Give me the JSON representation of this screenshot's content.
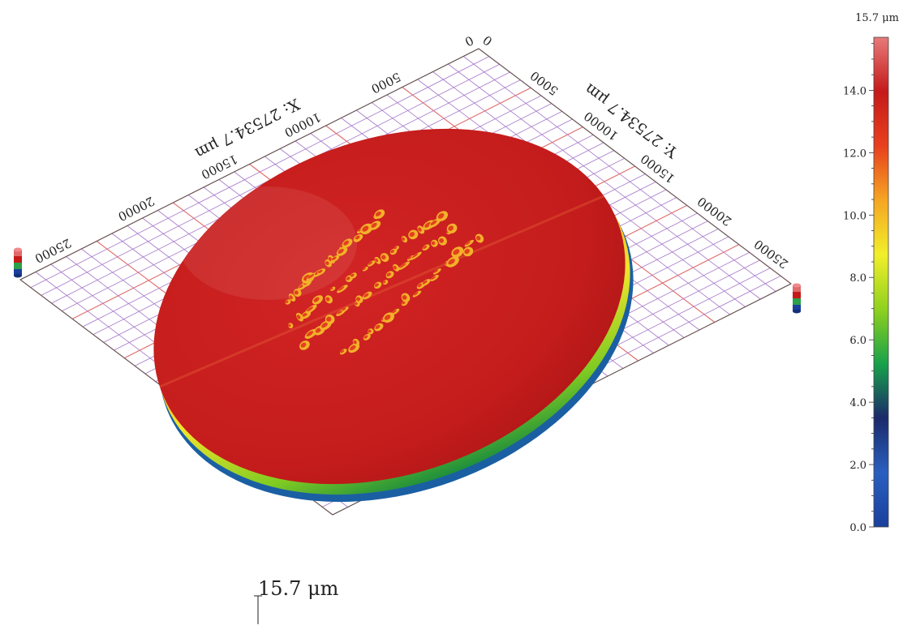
{
  "chart_data": {
    "type": "surface",
    "x_axis": {
      "label": "X: 27534.7 μm",
      "range": [
        0,
        27534.7
      ],
      "ticks": [
        {
          "value": 0,
          "label": "0"
        },
        {
          "value": 5000,
          "label": "5000"
        },
        {
          "value": 10000,
          "label": "10000"
        },
        {
          "value": 15000,
          "label": "15000"
        },
        {
          "value": 20000,
          "label": "20000"
        },
        {
          "value": 25000,
          "label": "25000"
        }
      ]
    },
    "y_axis": {
      "label": "Y: 27534.7 μm",
      "range": [
        0,
        27534.7
      ],
      "ticks": [
        {
          "value": 0,
          "label": "0"
        },
        {
          "value": 5000,
          "label": "5000"
        },
        {
          "value": 10000,
          "label": "10000"
        },
        {
          "value": 15000,
          "label": "15000"
        },
        {
          "value": 20000,
          "label": "20000"
        },
        {
          "value": 25000,
          "label": "25000"
        }
      ]
    },
    "z_axis": {
      "label": "15.7 μm",
      "max": 15.7
    },
    "colorbar": {
      "max_label": "15.7 μm",
      "range": [
        0,
        15.7
      ],
      "ticks": [
        {
          "value": 0,
          "label": "0.0"
        },
        {
          "value": 2,
          "label": "2.0"
        },
        {
          "value": 4,
          "label": "4.0"
        },
        {
          "value": 6,
          "label": "6.0"
        },
        {
          "value": 8,
          "label": "8.0"
        },
        {
          "value": 10,
          "label": "10.0"
        },
        {
          "value": 12,
          "label": "12.0"
        },
        {
          "value": 14,
          "label": "14.0"
        }
      ],
      "colors": [
        "#1a3f9c",
        "#2a5fc0",
        "#1b2a6a",
        "#18a24a",
        "#8fd11e",
        "#f2ef2a",
        "#f5a623",
        "#e8401e",
        "#c51a1a",
        "#e87a7a"
      ]
    },
    "grid": true,
    "grid_colors": {
      "major": "#e06a6a",
      "minor": "#a477c9"
    },
    "surface_colors": {
      "top": "#cc1e1e",
      "rim": "#f0e22a",
      "edge": "#1f9a3f"
    }
  }
}
